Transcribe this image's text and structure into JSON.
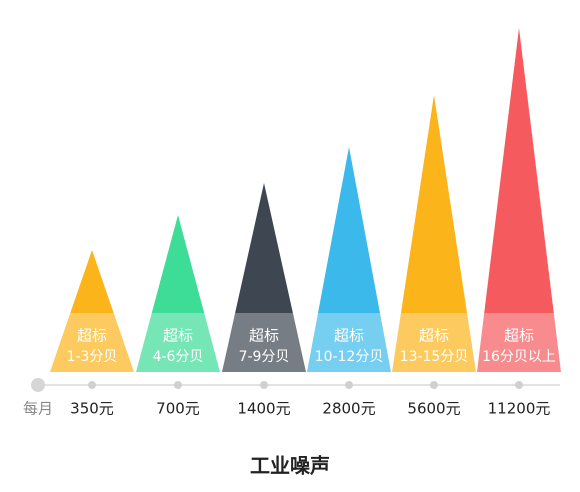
{
  "title": "工业噪声",
  "axis_label": "每月",
  "items": [
    {
      "badge": "超标",
      "range": "1-3分贝",
      "amount": "350元"
    },
    {
      "badge": "超标",
      "range": "4-6分贝",
      "amount": "700元"
    },
    {
      "badge": "超标",
      "range": "7-9分贝",
      "amount": "1400元"
    },
    {
      "badge": "超标",
      "range": "10-12分贝",
      "amount": "2800元"
    },
    {
      "badge": "超标",
      "range": "13-15分贝",
      "amount": "5600元"
    },
    {
      "badge": "超标",
      "range": "16分贝以上",
      "amount": "11200元"
    }
  ]
}
